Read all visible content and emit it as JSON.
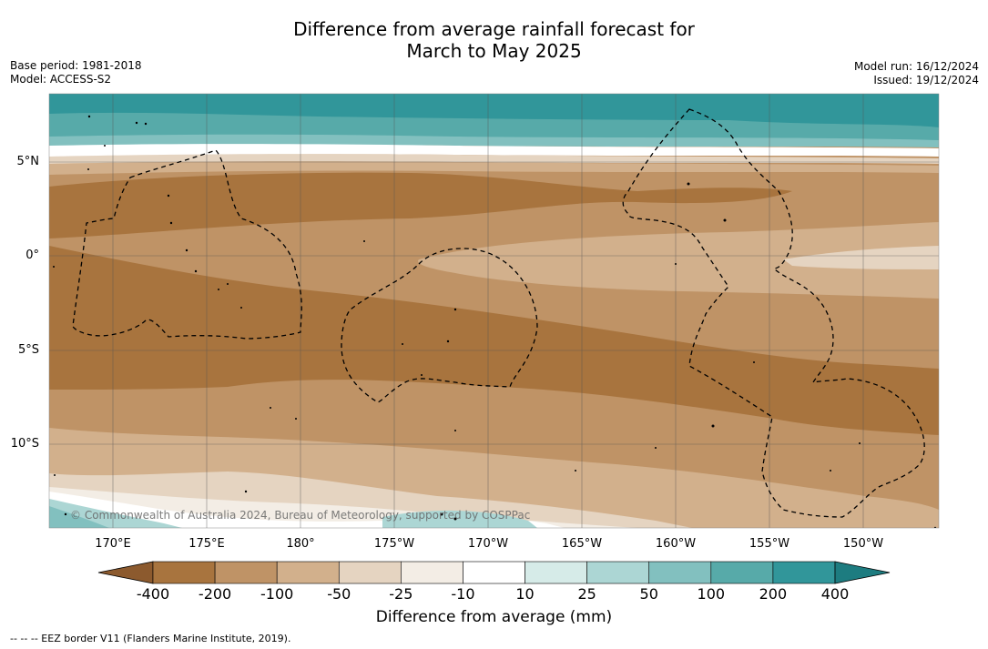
{
  "title": {
    "line1": "Difference from average rainfall forecast for",
    "line2": "March to May 2025"
  },
  "meta_left": {
    "base_period": "Base period: 1981-2018",
    "model": "Model: ACCESS-S2"
  },
  "meta_right": {
    "model_run": "Model run: 16/12/2024",
    "issued": "Issued: 19/12/2024"
  },
  "map": {
    "copyright": "© Commonwealth of Australia 2024, Bureau of Meteorology, supported by COSPPac",
    "lat_labels": [
      "5°N",
      "0°",
      "5°S",
      "10°S"
    ],
    "lon_labels": [
      "170°E",
      "175°E",
      "180°",
      "175°W",
      "170°W",
      "165°W",
      "160°W",
      "155°W",
      "150°W"
    ]
  },
  "colorbar": {
    "title": "Difference from average (mm)",
    "ticks": [
      "-400",
      "-200",
      "-100",
      "-50",
      "-25",
      "-10",
      "10",
      "25",
      "50",
      "100",
      "200",
      "400"
    ],
    "colors": [
      "#8c5a2e",
      "#a8743e",
      "#bf9366",
      "#d2b08c",
      "#e5d4c1",
      "#f3ede5",
      "#ffffff",
      "#d6ebe8",
      "#acd6d4",
      "#82c0bf",
      "#57aaa9",
      "#31969a",
      "#1d7c80"
    ]
  },
  "footnote": "--  --  -- EEZ border V11 (Flanders Marine Institute, 2019)."
}
